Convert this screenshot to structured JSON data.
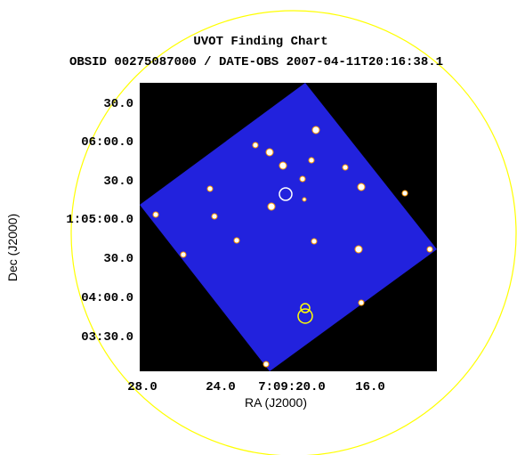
{
  "title": "UVOT Finding Chart",
  "subtitle": "OBSID 00275087000 / DATE-OBS 2007-04-11T20:16:38.1",
  "x_axis": {
    "label": "RA (J2000)",
    "ticks": [
      "28.0",
      "24.0",
      "7:09:20.0",
      "16.0"
    ]
  },
  "y_axis": {
    "label": "Dec (J2000)",
    "ticks": [
      "30.0",
      "06:00.0",
      "30.0",
      "1:05:00.0",
      "30.0",
      "04:00.0",
      "03:30.0"
    ]
  }
}
